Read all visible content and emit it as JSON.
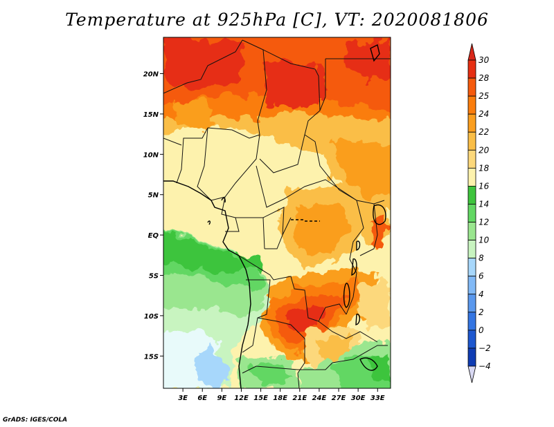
{
  "title": "Temperature at 925hPa [C], VT: 2020081806",
  "credit": "GrADS: IGES/COLA",
  "map": {
    "lon_range": [
      0,
      35
    ],
    "lat_range": [
      -19,
      24.5
    ],
    "x_ticks": [
      {
        "value": 3,
        "label": "3E"
      },
      {
        "value": 6,
        "label": "6E"
      },
      {
        "value": 9,
        "label": "9E"
      },
      {
        "value": 12,
        "label": "12E"
      },
      {
        "value": 15,
        "label": "15E"
      },
      {
        "value": 18,
        "label": "18E"
      },
      {
        "value": 21,
        "label": "21E"
      },
      {
        "value": 24,
        "label": "24E"
      },
      {
        "value": 27,
        "label": "27E"
      },
      {
        "value": 30,
        "label": "30E"
      },
      {
        "value": 33,
        "label": "33E"
      }
    ],
    "y_ticks": [
      {
        "value": 20,
        "label": "20N"
      },
      {
        "value": 15,
        "label": "15N"
      },
      {
        "value": 10,
        "label": "10N"
      },
      {
        "value": 5,
        "label": "5N"
      },
      {
        "value": 0,
        "label": "EQ"
      },
      {
        "value": -5,
        "label": "5S"
      },
      {
        "value": -10,
        "label": "10S"
      },
      {
        "value": -15,
        "label": "15S"
      }
    ]
  },
  "colorbar": {
    "levels": [
      {
        "value": "30",
        "color": "#e62f13"
      },
      {
        "value": "28",
        "color": "#f55a0d"
      },
      {
        "value": "25",
        "color": "#fa7d0d"
      },
      {
        "value": "24",
        "color": "#fa9e1f"
      },
      {
        "value": "22",
        "color": "#fabe47"
      },
      {
        "value": "20",
        "color": "#fcd87b"
      },
      {
        "value": "18",
        "color": "#fdf2ad"
      },
      {
        "value": "16",
        "color": "#3ec43d"
      },
      {
        "value": "14",
        "color": "#62d763"
      },
      {
        "value": "12",
        "color": "#9ae68f"
      },
      {
        "value": "10",
        "color": "#c8f4c0"
      },
      {
        "value": "8",
        "color": "#a7d7fb"
      },
      {
        "value": "6",
        "color": "#81b9f6"
      },
      {
        "value": "4",
        "color": "#5a98ed"
      },
      {
        "value": "2",
        "color": "#3475e2"
      },
      {
        "value": "0",
        "color": "#1d57cf"
      },
      {
        "value": "−2",
        "color": "#0f3cb3"
      },
      {
        "value": "−4",
        "color": "#0d1f8a"
      }
    ],
    "top_color": "#d8281a",
    "bottom_color": "#d8d8f2"
  }
}
